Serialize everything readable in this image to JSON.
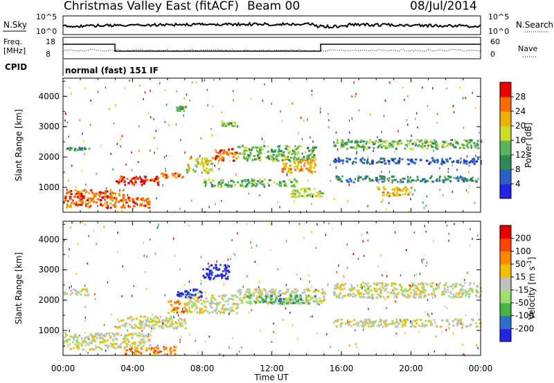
{
  "header": {
    "radar": "Christmas Valley East (fitACF)",
    "beam": "Beam 00",
    "date": "08/Jul/2014"
  },
  "status_panels": {
    "noise_label": "N.Sky",
    "noise_right_label": "N.Search",
    "noise_ticks": [
      "10^5",
      "10^0"
    ],
    "freq_label_1": "Freq.",
    "freq_label_2": "[MHz]",
    "freq_ticks": [
      "18",
      "8"
    ],
    "nave_label": "Nave",
    "nave_ticks": [
      "60",
      "0"
    ],
    "cpid_label": "CPID",
    "cpid_value": "normal (fast) 151 IF"
  },
  "chart_data": [
    {
      "type": "heatmap",
      "name": "power",
      "xlabel": "Time UT",
      "ylabel": "Slant Range [km]",
      "xlim": [
        0,
        24
      ],
      "ylim": [
        180,
        4600
      ],
      "x_ticks": [
        "00:00",
        "04:00",
        "08:00",
        "12:00",
        "16:00",
        "20:00",
        "00:00"
      ],
      "y_ticks": [
        "1000",
        "2000",
        "3000",
        "4000"
      ],
      "colorbar": {
        "label": "Power [dB]",
        "ticks": [
          "4",
          "8",
          "12",
          "16",
          "20",
          "24",
          "28"
        ],
        "range": [
          0,
          30
        ],
        "colors": [
          "#2424e6",
          "#2a5fcc",
          "#2f8a55",
          "#5cb45a",
          "#c8dc28",
          "#f0b000",
          "#ff6a00",
          "#e80000"
        ]
      },
      "bands": [
        {
          "t": [
            0.0,
            1.5
          ],
          "range": [
            2250,
            2350
          ],
          "level": 2
        },
        {
          "t": [
            0.0,
            3.5
          ],
          "range": [
            700,
            950
          ],
          "level": 6
        },
        {
          "t": [
            0.0,
            5.0
          ],
          "range": [
            350,
            700
          ],
          "level": 6
        },
        {
          "t": [
            3.0,
            5.5
          ],
          "range": [
            1100,
            1400
          ],
          "level": 7
        },
        {
          "t": [
            5.5,
            7.0
          ],
          "range": [
            1350,
            1500
          ],
          "level": 6
        },
        {
          "t": [
            7.0,
            8.5
          ],
          "range": [
            1500,
            2000
          ],
          "level": 4
        },
        {
          "t": [
            8.5,
            10.0
          ],
          "range": [
            1900,
            2300
          ],
          "level": 6
        },
        {
          "t": [
            10.0,
            14.5
          ],
          "range": [
            1900,
            2400
          ],
          "level": 3
        },
        {
          "t": [
            12.5,
            14.5
          ],
          "range": [
            1500,
            2000
          ],
          "level": 5
        },
        {
          "t": [
            8.0,
            13.5
          ],
          "range": [
            1050,
            1300
          ],
          "level": 3
        },
        {
          "t": [
            13.0,
            15.0
          ],
          "range": [
            700,
            1000
          ],
          "level": 4
        },
        {
          "t": [
            15.5,
            24.0
          ],
          "range": [
            2300,
            2600
          ],
          "level": 3
        },
        {
          "t": [
            15.5,
            24.0
          ],
          "range": [
            1800,
            2000
          ],
          "level": 1
        },
        {
          "t": [
            15.5,
            24.0
          ],
          "range": [
            1200,
            1400
          ],
          "level": 2
        },
        {
          "t": [
            18.0,
            20.0
          ],
          "range": [
            750,
            1050
          ],
          "level": 5
        },
        {
          "t": [
            9.0,
            10.0
          ],
          "range": [
            3000,
            3200
          ],
          "level": 3
        },
        {
          "t": [
            6.5,
            7.0
          ],
          "range": [
            3550,
            3700
          ],
          "level": 3
        }
      ]
    },
    {
      "type": "heatmap",
      "name": "velocity",
      "xlabel": "Time UT",
      "ylabel": "Slant Range [km]",
      "xlim": [
        0,
        24
      ],
      "ylim": [
        180,
        4600
      ],
      "x_ticks": [
        "00:00",
        "04:00",
        "08:00",
        "12:00",
        "16:00",
        "20:00",
        "00:00"
      ],
      "y_ticks": [
        "1000",
        "2000",
        "3000",
        "4000"
      ],
      "colorbar": {
        "label": "Velocity [m s^-1]",
        "ticks": [
          "200",
          "100",
          "50",
          "15",
          "-15",
          "-50",
          "-100",
          "-200"
        ],
        "range": [
          -250,
          250
        ],
        "colors": [
          "#2424e6",
          "#2f6fcc",
          "#47b447",
          "#9ce070",
          "#c0c0c0",
          "#f0c000",
          "#ff8800",
          "#ff4400",
          "#e80000"
        ]
      },
      "bands": [
        {
          "t": [
            0.0,
            1.5
          ],
          "range": [
            2200,
            2400
          ],
          "level": 4
        },
        {
          "t": [
            0.0,
            5.0
          ],
          "range": [
            400,
            950
          ],
          "level": 4
        },
        {
          "t": [
            3.0,
            7.0
          ],
          "range": [
            1100,
            1500
          ],
          "level": 4
        },
        {
          "t": [
            7.0,
            10.0
          ],
          "range": [
            1600,
            2200
          ],
          "level": 4
        },
        {
          "t": [
            10.0,
            15.0
          ],
          "range": [
            1900,
            2400
          ],
          "level": 4
        },
        {
          "t": [
            15.5,
            24.0
          ],
          "range": [
            2100,
            2600
          ],
          "level": 4
        },
        {
          "t": [
            15.5,
            24.0
          ],
          "range": [
            1150,
            1400
          ],
          "level": 4
        },
        {
          "t": [
            6.5,
            8.0
          ],
          "range": [
            2100,
            2400
          ],
          "level": 0
        },
        {
          "t": [
            8.0,
            9.5
          ],
          "range": [
            2700,
            3200
          ],
          "level": 0
        },
        {
          "t": [
            10.5,
            14.5
          ],
          "range": [
            1900,
            2200
          ],
          "level": 2
        },
        {
          "t": [
            3.5,
            6.5
          ],
          "range": [
            250,
            500
          ],
          "level": 6
        },
        {
          "t": [
            6.0,
            7.0
          ],
          "range": [
            1600,
            2000
          ],
          "level": 6
        }
      ]
    }
  ]
}
